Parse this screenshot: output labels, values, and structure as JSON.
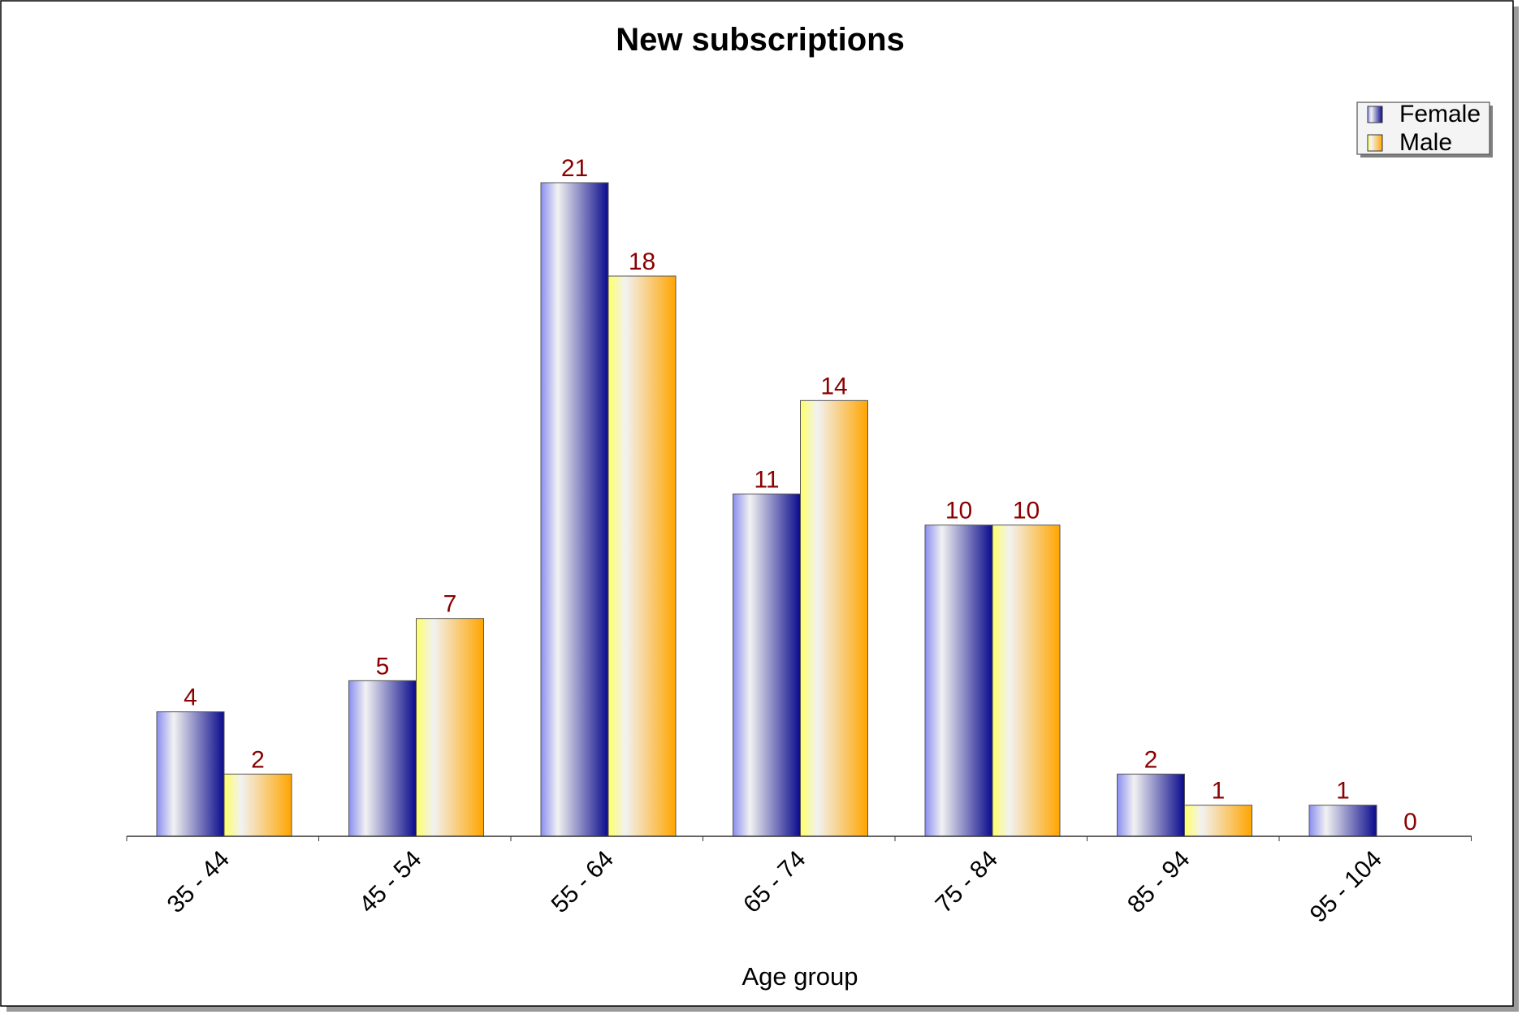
{
  "chart_data": {
    "type": "bar",
    "title": "New subscriptions",
    "xlabel": "Age group",
    "ylabel": "",
    "categories": [
      "35 - 44",
      "45 - 54",
      "55 - 64",
      "65 - 74",
      "75 - 84",
      "85 - 94",
      "95 - 104"
    ],
    "series": [
      {
        "name": "Female",
        "values": [
          4,
          5,
          21,
          11,
          10,
          2,
          1
        ],
        "color_dark": "#0a0a8c",
        "color_light": "#8a8ef0"
      },
      {
        "name": "Male",
        "values": [
          2,
          7,
          18,
          14,
          10,
          1,
          0
        ],
        "color_dark": "#ffa500",
        "color_light": "#ffff66"
      }
    ],
    "ylim": [
      0,
      21
    ],
    "grid": false,
    "legend_position": "top-right",
    "data_label_color": "#8b0000"
  }
}
